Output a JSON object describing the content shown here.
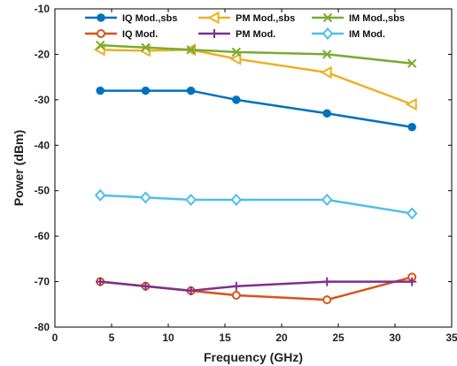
{
  "chart_data": {
    "type": "line",
    "title": "",
    "xlabel": "Frequency (GHz)",
    "ylabel": "Power (dBm)",
    "xlim": [
      0,
      35
    ],
    "ylim": [
      -80,
      -10
    ],
    "xticks": [
      0,
      5,
      10,
      15,
      20,
      25,
      30,
      35
    ],
    "yticks": [
      -80,
      -70,
      -60,
      -50,
      -40,
      -30,
      -20,
      -10
    ],
    "x": [
      4,
      8,
      12,
      16,
      24,
      31.5
    ],
    "grid": false,
    "legend_placement": "top",
    "series": [
      {
        "name": "IQ Mod.,sbs",
        "color": "#0072BD",
        "marker": "circle-filled",
        "values": [
          -28,
          -28,
          -28,
          -30,
          -33,
          -36
        ]
      },
      {
        "name": "PM Mod.,sbs",
        "color": "#EDB120",
        "marker": "triangle-left",
        "values": [
          -19,
          -19.2,
          -19,
          -21,
          -24,
          -31
        ]
      },
      {
        "name": "IM Mod.,sbs",
        "color": "#77AC30",
        "marker": "x",
        "values": [
          -18,
          -18.5,
          -19,
          -19.5,
          -20,
          -22
        ]
      },
      {
        "name": "IQ Mod.",
        "color": "#D95319",
        "marker": "circle-open",
        "values": [
          -70,
          -71,
          -72,
          -73,
          -74,
          -69
        ]
      },
      {
        "name": "PM Mod.",
        "color": "#7E2F8E",
        "marker": "plus",
        "values": [
          -70,
          -71,
          -72,
          -71,
          -70,
          -70
        ]
      },
      {
        "name": "IM Mod.",
        "color": "#4DBEEE",
        "marker": "diamond",
        "values": [
          -51,
          -51.5,
          -52,
          -52,
          -52,
          -55
        ]
      }
    ]
  }
}
